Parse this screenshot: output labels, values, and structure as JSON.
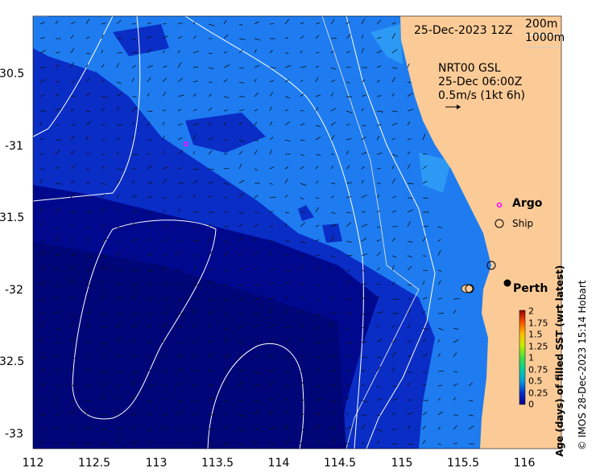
{
  "map": {
    "x_ticks": [
      "112",
      "112.5",
      "113",
      "113.5",
      "114",
      "114.5",
      "115",
      "115.5",
      "116"
    ],
    "y_ticks": [
      "-30.5",
      "-31",
      "-31.5",
      "-32",
      "-32.5",
      "-33"
    ],
    "date_label": "25-Dec-2023 12Z",
    "contour_legend": {
      "line1": "200m",
      "line2": "1000m"
    },
    "current_info": {
      "line1": "NRT00 GSL",
      "line2": "25-Dec 06:00Z",
      "line3": "0.5m/s (1kt 6h)"
    },
    "argo_label": "Argo",
    "ship_label": "Ship",
    "city_label": "Perth",
    "colorbar": {
      "title": "Age (days) of filled SST (wrt latest)",
      "ticks": [
        "2",
        "1.75",
        "1.5",
        "1.25",
        "1",
        "0.75",
        "0.5",
        "0.25",
        "0"
      ]
    },
    "credit": "© IMOS 28-Dec-2023 15:14 Hobart",
    "colors": {
      "land": "#fbcb97",
      "sea_deep": "#00098e",
      "sea_mid": "#0a2dc6",
      "sea_shelf": "#1e7cf0",
      "argo": "#ff00ff"
    }
  }
}
